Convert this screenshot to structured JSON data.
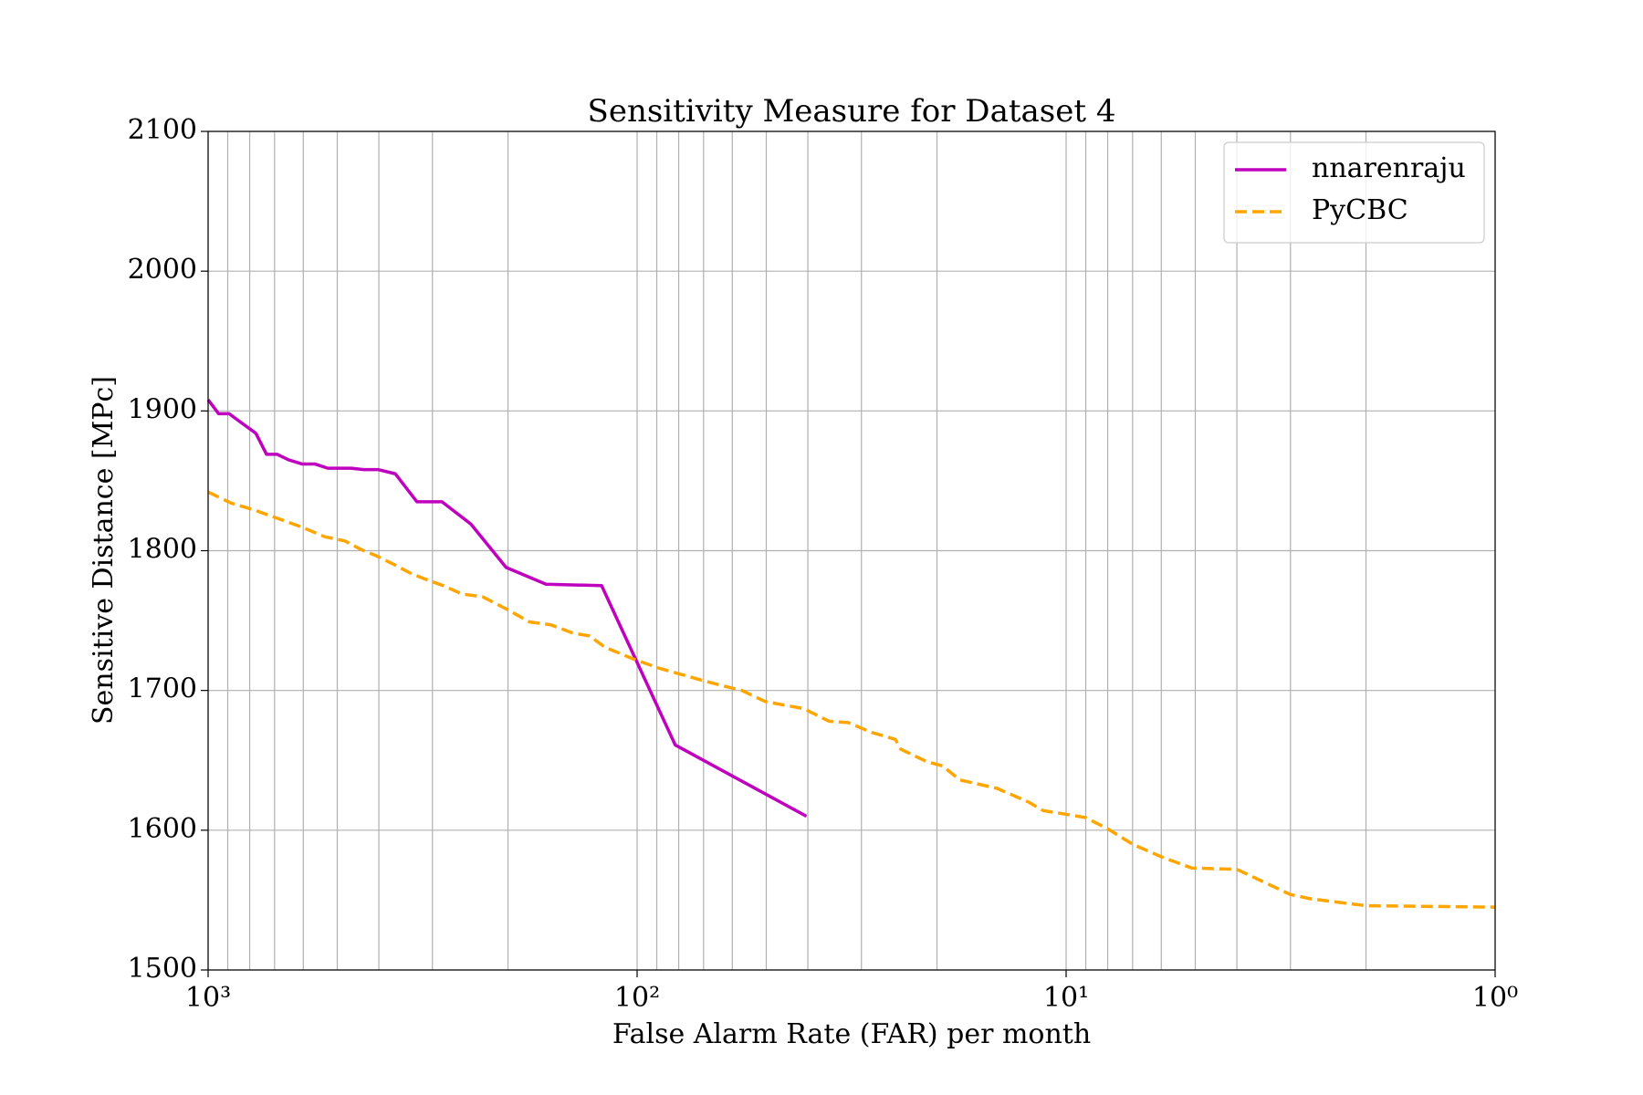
{
  "chart_data": {
    "type": "line",
    "title": "Sensitivity Measure for Dataset 4",
    "xlabel": "False Alarm Rate (FAR) per month",
    "ylabel": "Sensitive Distance [MPc]",
    "xscale": "log",
    "xlim": [
      1000,
      1
    ],
    "ylim": [
      1500,
      2100
    ],
    "xticks": [
      {
        "value": 1000,
        "label": "10³"
      },
      {
        "value": 100,
        "label": "10²"
      },
      {
        "value": 10,
        "label": "10¹"
      },
      {
        "value": 1,
        "label": "10⁰"
      }
    ],
    "xminorticks": [
      900,
      800,
      700,
      600,
      500,
      400,
      300,
      200,
      90,
      80,
      70,
      60,
      50,
      40,
      30,
      20,
      9,
      8,
      7,
      6,
      5,
      4,
      3,
      2
    ],
    "yticks": [
      1500,
      1600,
      1700,
      1800,
      1900,
      2000,
      2100
    ],
    "grid": true,
    "legend": "upper right",
    "series": [
      {
        "name": "nnarenraju",
        "color": "#bf00bf",
        "linestyle": "solid",
        "x": [
          1000,
          945,
          893,
          858,
          774,
          731,
          691,
          649,
          603,
          563,
          526,
          464,
          434,
          401,
          366,
          326,
          285,
          244,
          202,
          163,
          121,
          81.5,
          40.3
        ],
        "values": [
          1908,
          1898,
          1898,
          1894,
          1884,
          1869,
          1869,
          1865,
          1862,
          1862,
          1859,
          1859,
          1858,
          1858,
          1855,
          1835,
          1835,
          1819,
          1788,
          1776,
          1775,
          1661,
          1610
        ]
      },
      {
        "name": "PyCBC",
        "color": "#ffa500",
        "linestyle": "dashed",
        "x": [
          1000,
          883,
          779,
          687,
          606,
          535,
          480,
          441,
          403,
          368,
          338,
          308,
          283,
          256,
          229,
          201,
          178,
          159,
          141,
          129,
          119,
          101,
          89,
          78,
          70,
          62.5,
          57,
          50.2,
          40.9,
          35.7,
          32.2,
          28.4,
          25,
          24.3,
          21.1,
          19.4,
          17.7,
          14.5,
          12.2,
          11.3,
          9.8,
          9.0,
          8.0,
          7.0,
          6.0,
          5.1,
          4.0,
          3.0,
          2.7,
          2.0,
          1
        ],
        "values": [
          1842,
          1834,
          1829,
          1823,
          1817,
          1810,
          1807,
          1801,
          1796,
          1790,
          1784,
          1779,
          1775,
          1769,
          1767,
          1758,
          1749,
          1747,
          1741,
          1739,
          1731,
          1722,
          1716,
          1711,
          1707,
          1703,
          1700,
          1692,
          1687,
          1678,
          1677,
          1670,
          1665,
          1658,
          1649,
          1646,
          1636,
          1630,
          1620,
          1614,
          1611,
          1609,
          1601,
          1590,
          1581,
          1573,
          1572,
          1554,
          1551,
          1546,
          1545
        ]
      }
    ]
  }
}
